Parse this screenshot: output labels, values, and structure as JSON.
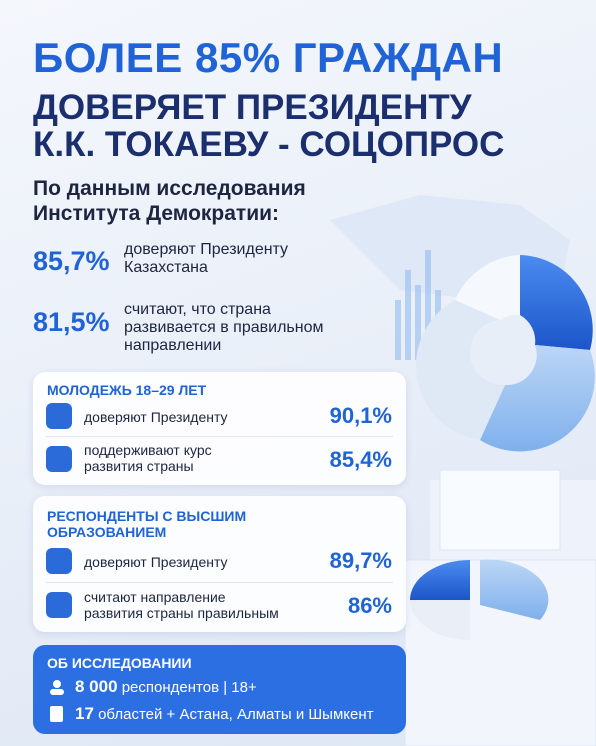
{
  "header": {
    "title_lines": [
      "БОЛЕЕ 85% ГРАЖДАН",
      "ДОВЕРЯЕТ ПРЕЗИДЕНТУ",
      "К.К. ТОКАЕВУ - СОЦОПРОС"
    ]
  },
  "intro": {
    "lines": [
      "По данным исследования",
      "Института Демократии:"
    ]
  },
  "stats": [
    {
      "value": "85,7%",
      "lines": [
        "доверяют Президенту",
        "Казахстана"
      ]
    },
    {
      "value": "81,5%",
      "lines": [
        "считают, что страна",
        "развивается в правильном",
        "направлении"
      ]
    }
  ],
  "groups": [
    {
      "title_lines": [
        "МОЛОДЕЖЬ 18–29 ЛЕТ"
      ],
      "items": [
        {
          "lines": [
            "доверяют Президенту"
          ],
          "value": "90,1%"
        },
        {
          "lines": [
            "поддерживают курс",
            "развития страны"
          ],
          "value": "85,4%"
        }
      ]
    },
    {
      "title_lines": [
        "РЕСПОНДЕНТЫ С ВЫСШИМ",
        "ОБРАЗОВАНИЕМ"
      ],
      "items": [
        {
          "lines": [
            "доверяют Президенту"
          ],
          "value": "89,7%"
        },
        {
          "lines": [
            "считают направление",
            "развития страны правильным"
          ],
          "value": "86%"
        }
      ]
    }
  ],
  "about": {
    "title": "ОБ ИССЛЕДОВАНИИ",
    "rows": [
      {
        "value": "8 000",
        "text": "респондентов | 18+"
      },
      {
        "value": "17",
        "text": "областей + Астана, Алматы и Шымкент"
      }
    ]
  }
}
